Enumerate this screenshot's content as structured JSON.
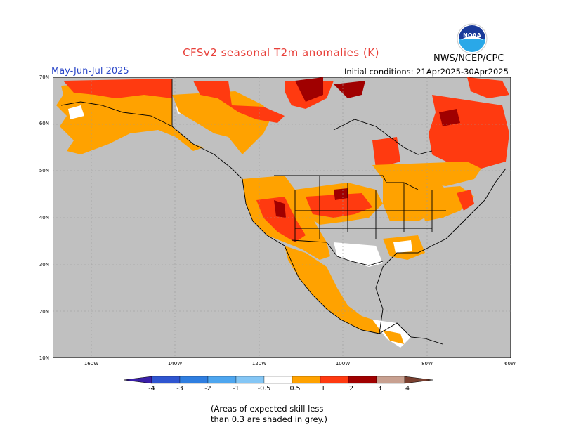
{
  "header": {
    "title": "CFSv2 seasonal T2m anomalies (K)",
    "season": "May-Jun-Jul 2025",
    "initial_conditions": "Initial conditions: 21Apr2025-30Apr2025",
    "agency": "NWS/NCEP/CPC",
    "logo_text": "NOAA"
  },
  "map": {
    "lat_labels": [
      "70N",
      "60N",
      "50N",
      "40N",
      "30N",
      "20N",
      "10N"
    ],
    "lon_labels": [
      "160W",
      "140W",
      "120W",
      "100W",
      "80W",
      "60W"
    ],
    "ocean_color": "#c0c0c0",
    "no_skill_color": "#c0c0c0",
    "land_neutral_color": "#ffffff"
  },
  "colorbar": {
    "labels": [
      "-4",
      "-3",
      "-2",
      "-1",
      "-0.5",
      "0.5",
      "1",
      "2",
      "3",
      "4"
    ],
    "colors": [
      "#3a1fa8",
      "#2f55d0",
      "#2f7ee0",
      "#4ea6ef",
      "#84c6f5",
      "#ffffff",
      "#ffa200",
      "#ff3a10",
      "#a00000",
      "#c8a090",
      "#7a4030"
    ]
  },
  "note": {
    "line1": "(Areas of expected skill less",
    "line2": "than 0.3 are shaded in grey.)"
  }
}
